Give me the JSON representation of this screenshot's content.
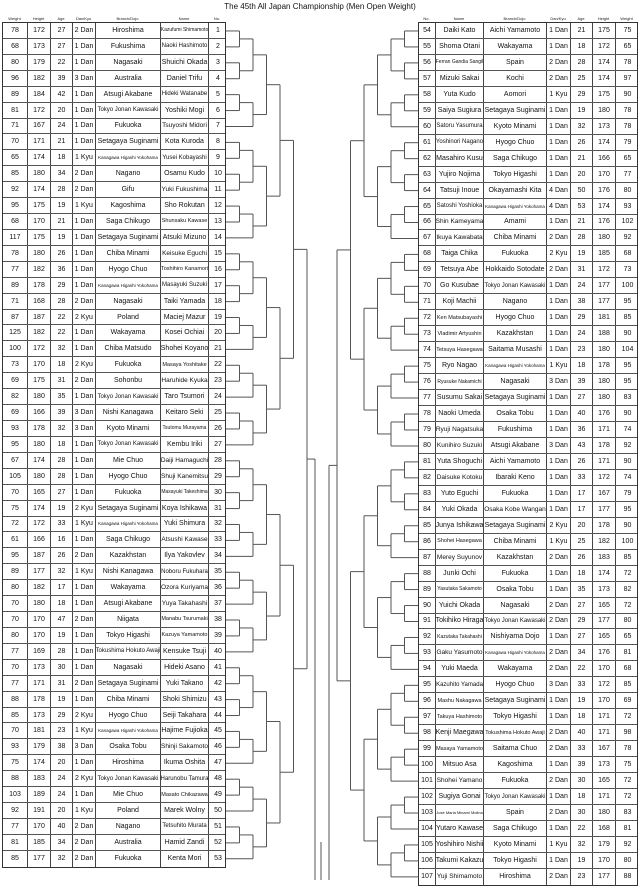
{
  "title": "The 45th All Japan Championship (Men Open Weight)",
  "left": {
    "headers": [
      "Weight",
      "Height",
      "Age",
      "Dan/Kyu",
      "Branch/Dojo",
      "Name",
      "No."
    ],
    "rows": [
      [
        "78",
        "172",
        "27",
        "2 Dan",
        "Hiroshima",
        "Kazufumi Shimamoto",
        "1"
      ],
      [
        "68",
        "173",
        "27",
        "1 Dan",
        "Fukushima",
        "Naoki Hashimoto",
        "2"
      ],
      [
        "80",
        "179",
        "22",
        "1 Dan",
        "Nagasaki",
        "Shuichi Okada",
        "3"
      ],
      [
        "96",
        "182",
        "39",
        "3 Dan",
        "Australia",
        "Daniel Trifu",
        "4"
      ],
      [
        "89",
        "184",
        "42",
        "1 Dan",
        "Atsugi Akabane",
        "Hideki Watanabe",
        "5"
      ],
      [
        "81",
        "172",
        "20",
        "1 Dan",
        "Tokyo Jonan Kawasaki",
        "Yoshiki Mogi",
        "6"
      ],
      [
        "71",
        "167",
        "24",
        "1 Dan",
        "Fukuoka",
        "Tsuyoshi Midori",
        "7"
      ],
      [
        "70",
        "171",
        "21",
        "1 Dan",
        "Setagaya Suginami",
        "Kota Kuroda",
        "8"
      ],
      [
        "65",
        "174",
        "18",
        "1 Kyu",
        "Kanagawa Higashi Yokohama",
        "Yusei Kobayashi",
        "9"
      ],
      [
        "85",
        "180",
        "34",
        "2 Dan",
        "Nagano",
        "Osamu Kudo",
        "10"
      ],
      [
        "92",
        "174",
        "28",
        "2 Dan",
        "Gifu",
        "Yuki Fukushima",
        "11"
      ],
      [
        "95",
        "175",
        "19",
        "1 Kyu",
        "Kagoshima",
        "Sho Rokutan",
        "12"
      ],
      [
        "68",
        "170",
        "21",
        "1 Dan",
        "Saga Chikugo",
        "Shunsaku Kawase",
        "13"
      ],
      [
        "117",
        "175",
        "19",
        "1 Dan",
        "Setagaya Suginami",
        "Atsuki Mizuno",
        "14"
      ],
      [
        "78",
        "180",
        "26",
        "1 Dan",
        "Chiba Minami",
        "Keisuke Eguchi",
        "15"
      ],
      [
        "77",
        "182",
        "36",
        "1 Dan",
        "Hyogo Chuo",
        "Toshihiro Kanamori",
        "16"
      ],
      [
        "89",
        "178",
        "29",
        "1 Dan",
        "Kanagawa Higashi Yokohama",
        "Masayuki Suzuki",
        "17"
      ],
      [
        "71",
        "168",
        "28",
        "2 Dan",
        "Nagasaki",
        "Taiki Yamada",
        "18"
      ],
      [
        "87",
        "187",
        "22",
        "2 Kyu",
        "Poland",
        "Maciej Mazur",
        "19"
      ],
      [
        "125",
        "182",
        "22",
        "1 Dan",
        "Wakayama",
        "Kosei Ochiai",
        "20"
      ],
      [
        "100",
        "172",
        "32",
        "1 Dan",
        "Chiba Matsudo",
        "Shohei Koyano",
        "21"
      ],
      [
        "73",
        "170",
        "18",
        "2 Kyu",
        "Fukuoka",
        "Masaya Yoshitake",
        "22"
      ],
      [
        "69",
        "175",
        "31",
        "2 Dan",
        "Sohonbu",
        "Haruhide Kyuka",
        "23"
      ],
      [
        "82",
        "180",
        "35",
        "1 Dan",
        "Tokyo Jonan Kawasaki",
        "Taro Tsumori",
        "24"
      ],
      [
        "69",
        "166",
        "39",
        "3 Dan",
        "Nishi Kanagawa",
        "Keitaro Seki",
        "25"
      ],
      [
        "93",
        "178",
        "32",
        "3 Dan",
        "Kyoto Minami",
        "Tsutomu Murayama",
        "26"
      ],
      [
        "95",
        "180",
        "18",
        "1 Dan",
        "Tokyo Jonan Kawasaki",
        "Kembu Iriki",
        "27"
      ],
      [
        "67",
        "174",
        "28",
        "1 Dan",
        "Mie Chuo",
        "Daiji Hamaguchi",
        "28"
      ],
      [
        "105",
        "180",
        "28",
        "1 Dan",
        "Hyogo Chuo",
        "Shuji Kanemitsu",
        "29"
      ],
      [
        "70",
        "165",
        "27",
        "1 Dan",
        "Fukuoka",
        "Masayuki Takeshima",
        "30"
      ],
      [
        "75",
        "174",
        "19",
        "2 Kyu",
        "Setagaya Suginami",
        "Koya Ishikawa",
        "31"
      ],
      [
        "72",
        "172",
        "33",
        "1 Kyu",
        "Kanagawa Higashi Yokohama",
        "Yuki Shimura",
        "32"
      ],
      [
        "61",
        "166",
        "16",
        "1 Dan",
        "Saga Chikugo",
        "Atsushi Kawase",
        "33"
      ],
      [
        "95",
        "187",
        "26",
        "2 Dan",
        "Kazakhstan",
        "Ilya Yakovlev",
        "34"
      ],
      [
        "89",
        "177",
        "32",
        "1 Kyu",
        "Nishi Kanagawa",
        "Noboru Fukuhara",
        "35"
      ],
      [
        "80",
        "182",
        "17",
        "1 Dan",
        "Wakayama",
        "Ozora Kuriyama",
        "36"
      ],
      [
        "70",
        "180",
        "18",
        "1 Dan",
        "Atsugi Akabane",
        "Yuya Takahashi",
        "37"
      ],
      [
        "70",
        "170",
        "47",
        "2 Dan",
        "Niigata",
        "Manabu Tsurumaki",
        "38"
      ],
      [
        "80",
        "170",
        "19",
        "1 Dan",
        "Tokyo Higashi",
        "Kazuya Yamamoto",
        "39"
      ],
      [
        "77",
        "169",
        "28",
        "1 Dan",
        "Tokushima Hokuto Awaji",
        "Kensuke Tsuji",
        "40"
      ],
      [
        "70",
        "173",
        "30",
        "1 Dan",
        "Nagasaki",
        "Hideki Asano",
        "41"
      ],
      [
        "77",
        "171",
        "31",
        "2 Dan",
        "Setagaya Suginami",
        "Yuki Takano",
        "42"
      ],
      [
        "88",
        "178",
        "19",
        "1 Dan",
        "Chiba Minami",
        "Shoki Shimizu",
        "43"
      ],
      [
        "85",
        "173",
        "29",
        "2 Kyu",
        "Hyogo Chuo",
        "Seiji Takahara",
        "44"
      ],
      [
        "70",
        "181",
        "23",
        "1 Kyu",
        "Kanagawa Higashi Yokohama",
        "Hajime Fujioka",
        "45"
      ],
      [
        "93",
        "179",
        "38",
        "3 Dan",
        "Osaka Tobu",
        "Shinji Sakamoto",
        "46"
      ],
      [
        "75",
        "174",
        "20",
        "1 Dan",
        "Hiroshima",
        "Ikuma Oshita",
        "47"
      ],
      [
        "88",
        "183",
        "24",
        "2 Kyu",
        "Tokyo Jonan Kawasaki",
        "Harunobu Tamura",
        "48"
      ],
      [
        "103",
        "189",
        "24",
        "1 Dan",
        "Mie Chuo",
        "Masato Chikazawa",
        "49"
      ],
      [
        "92",
        "191",
        "20",
        "1 Kyu",
        "Poland",
        "Marek Wolny",
        "50"
      ],
      [
        "77",
        "170",
        "40",
        "2 Dan",
        "Nagano",
        "Tetsuhito Murata",
        "51"
      ],
      [
        "81",
        "185",
        "34",
        "2 Dan",
        "Australia",
        "Hamid Zandi",
        "52"
      ],
      [
        "85",
        "177",
        "32",
        "2 Dan",
        "Fukuoka",
        "Kenta Mori",
        "53"
      ]
    ]
  },
  "right": {
    "headers": [
      "No.",
      "Name",
      "Branch/Dojo",
      "Dan/Kyu",
      "Age",
      "Height",
      "Weight"
    ],
    "rows": [
      [
        "54",
        "Daiki Kato",
        "Aichi Yamamoto",
        "1 Dan",
        "21",
        "175",
        "75"
      ],
      [
        "55",
        "Shoma Otani",
        "Wakayama",
        "1 Dan",
        "18",
        "172",
        "65"
      ],
      [
        "56",
        "Ferran Gandia Sangil",
        "Spain",
        "2 Dan",
        "28",
        "174",
        "78"
      ],
      [
        "57",
        "Mizuki Sakai",
        "Kochi",
        "2 Dan",
        "25",
        "174",
        "97"
      ],
      [
        "58",
        "Yuta Kudo",
        "Aomori",
        "1 Kyu",
        "29",
        "175",
        "90"
      ],
      [
        "59",
        "Saiya Sugiura",
        "Setagaya Suginami",
        "1 Dan",
        "19",
        "180",
        "78"
      ],
      [
        "60",
        "Satoru Yasumura",
        "Kyoto Minami",
        "1 Dan",
        "32",
        "173",
        "78"
      ],
      [
        "61",
        "Yoshinori Nagano",
        "Hyogo Chuo",
        "1 Dan",
        "26",
        "174",
        "79"
      ],
      [
        "62",
        "Masahiro Kusu",
        "Saga Chikugo",
        "1 Dan",
        "21",
        "166",
        "65"
      ],
      [
        "63",
        "Yujiro Nojima",
        "Tokyo Higashi",
        "1 Dan",
        "20",
        "170",
        "77"
      ],
      [
        "64",
        "Tatsuji Inoue",
        "Okayamashi Kita",
        "4 Dan",
        "50",
        "176",
        "80"
      ],
      [
        "65",
        "Satoshi Yoshioka",
        "Kanagawa Higashi Yokohama",
        "4 Dan",
        "53",
        "174",
        "93"
      ],
      [
        "66",
        "Shin Kameyama",
        "Amami",
        "1 Dan",
        "21",
        "176",
        "102"
      ],
      [
        "67",
        "Ikuya Kawabata",
        "Chiba Minami",
        "2 Dan",
        "28",
        "180",
        "92"
      ],
      [
        "68",
        "Taiga Chika",
        "Fukuoka",
        "2 Kyu",
        "19",
        "185",
        "68"
      ],
      [
        "69",
        "Tetsuya Abe",
        "Hokkaido Sotodate",
        "2 Dan",
        "31",
        "172",
        "73"
      ],
      [
        "70",
        "Go Kusubae",
        "Tokyo Jonan Kawasaki",
        "1 Dan",
        "24",
        "177",
        "100"
      ],
      [
        "71",
        "Koji Machii",
        "Nagano",
        "1 Dan",
        "38",
        "177",
        "95"
      ],
      [
        "72",
        "Ken Matsubayashi",
        "Hyogo Chuo",
        "1 Dan",
        "29",
        "181",
        "85"
      ],
      [
        "73",
        "Vladimir Artyushin",
        "Kazakhstan",
        "1 Dan",
        "24",
        "188",
        "90"
      ],
      [
        "74",
        "Tetsuya Hasegawa",
        "Saitama Musashi",
        "1 Dan",
        "23",
        "180",
        "104"
      ],
      [
        "75",
        "Ryo Nagao",
        "Kanagawa Higashi Yokohama",
        "1 Kyu",
        "18",
        "178",
        "95"
      ],
      [
        "76",
        "Ryusuke Nakamichi",
        "Nagasaki",
        "3 Dan",
        "39",
        "180",
        "95"
      ],
      [
        "77",
        "Susumu Sakai",
        "Setagaya Suginami",
        "1 Dan",
        "27",
        "180",
        "83"
      ],
      [
        "78",
        "Naoki Umeda",
        "Osaka Tobu",
        "1 Dan",
        "40",
        "176",
        "90"
      ],
      [
        "79",
        "Ryuji Nagatsuka",
        "Fukushima",
        "1 Dan",
        "36",
        "171",
        "74"
      ],
      [
        "80",
        "Kunihiro Suzuki",
        "Atsugi Akabane",
        "3 Dan",
        "43",
        "178",
        "92"
      ],
      [
        "81",
        "Yuta Shoguchi",
        "Aichi Yamamoto",
        "1 Dan",
        "26",
        "171",
        "90"
      ],
      [
        "82",
        "Daisuke Kotoku",
        "Ibaraki Keno",
        "1 Dan",
        "33",
        "172",
        "74"
      ],
      [
        "83",
        "Yuto Eguchi",
        "Fukuoka",
        "1 Dan",
        "17",
        "167",
        "79"
      ],
      [
        "84",
        "Yuki Okada",
        "Osaka Kobe Wangan",
        "1 Dan",
        "17",
        "177",
        "95"
      ],
      [
        "85",
        "Junya Ishikawa",
        "Setagaya Suginami",
        "2 Kyu",
        "20",
        "178",
        "90"
      ],
      [
        "86",
        "Shohei Hasegawa",
        "Chiba Minami",
        "1 Kyu",
        "25",
        "182",
        "100"
      ],
      [
        "87",
        "Merey Suyunov",
        "Kazakhstan",
        "2 Dan",
        "26",
        "183",
        "85"
      ],
      [
        "88",
        "Junki Ochi",
        "Fukuoka",
        "1 Dan",
        "18",
        "174",
        "72"
      ],
      [
        "89",
        "Yasutaka Sakamoto",
        "Osaka Tobu",
        "1 Dan",
        "35",
        "173",
        "82"
      ],
      [
        "90",
        "Yuichi Okada",
        "Nagasaki",
        "2 Dan",
        "27",
        "165",
        "72"
      ],
      [
        "91",
        "Tokihiko Hiraga",
        "Tokyo Jonan Kawasaki",
        "2 Dan",
        "29",
        "177",
        "80"
      ],
      [
        "92",
        "Kazutaka Takahashi",
        "Nishiyama Dojo",
        "1 Dan",
        "27",
        "165",
        "65"
      ],
      [
        "93",
        "Gaku Yasumoto",
        "Kanagawa Higashi Yokohama",
        "2 Dan",
        "34",
        "176",
        "81"
      ],
      [
        "94",
        "Yuki Maeda",
        "Wakayama",
        "2 Dan",
        "22",
        "170",
        "68"
      ],
      [
        "95",
        "Kazuhito Yamada",
        "Hyogo Chuo",
        "3 Dan",
        "33",
        "172",
        "85"
      ],
      [
        "96",
        "Mashu Nakagawa",
        "Setagaya Suginami",
        "1 Dan",
        "19",
        "170",
        "69"
      ],
      [
        "97",
        "Takuya Hashimoto",
        "Tokyo Higashi",
        "1 Dan",
        "18",
        "171",
        "72"
      ],
      [
        "98",
        "Kenji Maegawa",
        "Tokushima Hokuto Awaji",
        "2 Dan",
        "40",
        "171",
        "98"
      ],
      [
        "99",
        "Masaya Yamamoto",
        "Saitama Chuo",
        "2 Dan",
        "33",
        "167",
        "78"
      ],
      [
        "100",
        "Mitsuo Asa",
        "Kagoshima",
        "1 Dan",
        "39",
        "173",
        "75"
      ],
      [
        "101",
        "Shohei Yamano",
        "Fukuoka",
        "2 Dan",
        "30",
        "165",
        "72"
      ],
      [
        "102",
        "Sugiya Gonai",
        "Tokyo Jonan Kawasaki",
        "1 Dan",
        "18",
        "171",
        "72"
      ],
      [
        "103",
        "Jose Maria Minami Molina",
        "Spain",
        "2 Dan",
        "30",
        "180",
        "83"
      ],
      [
        "104",
        "Yutaro Kawase",
        "Saga Chikugo",
        "1 Dan",
        "22",
        "168",
        "81"
      ],
      [
        "105",
        "Yoshihiro Nishii",
        "Kyoto Minami",
        "1 Kyu",
        "32",
        "179",
        "92"
      ],
      [
        "106",
        "Takumi Kakazu",
        "Tokyo Higashi",
        "1 Dan",
        "19",
        "170",
        "80"
      ],
      [
        "107",
        "Yuji Shimamoto",
        "Hiroshima",
        "2 Dan",
        "23",
        "177",
        "88"
      ]
    ]
  },
  "colors": {
    "lines": "#555555",
    "border": "#333333"
  }
}
